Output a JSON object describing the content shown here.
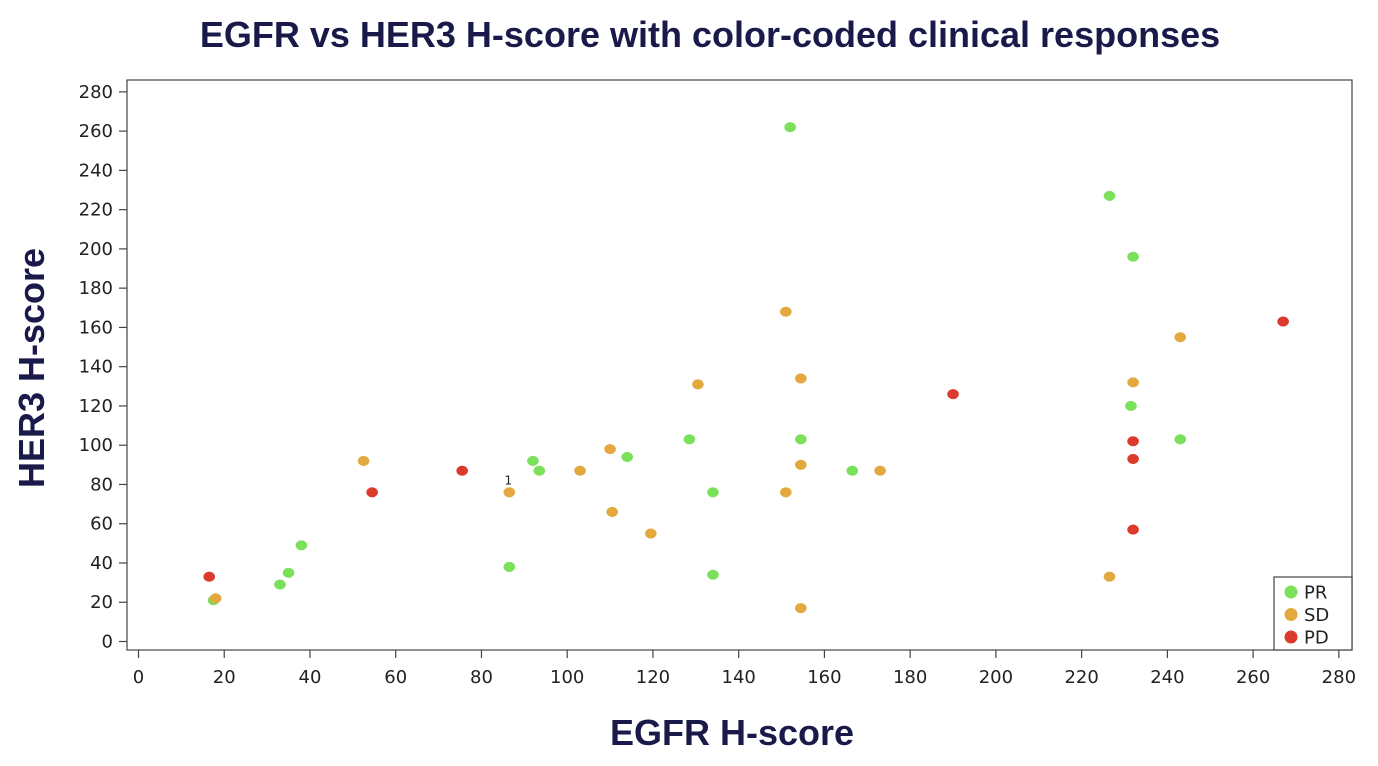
{
  "chart_data": {
    "type": "scatter",
    "title": "EGFR vs HER3 H-score with color-coded clinical responses",
    "xlabel": "EGFR H-score",
    "ylabel": "HER3 H-score",
    "xlim": [
      0,
      280
    ],
    "ylim": [
      0,
      280
    ],
    "xticks": [
      0,
      20,
      40,
      60,
      80,
      100,
      120,
      140,
      160,
      180,
      200,
      220,
      240,
      260,
      280
    ],
    "yticks": [
      0,
      20,
      40,
      60,
      80,
      100,
      120,
      140,
      160,
      180,
      200,
      220,
      240,
      260,
      280
    ],
    "grid": false,
    "legend_position": "bottom-right",
    "series": [
      {
        "name": "PR",
        "color": "#7be05a",
        "points": [
          {
            "x": 17.5,
            "y": 21
          },
          {
            "x": 33,
            "y": 29
          },
          {
            "x": 35,
            "y": 35
          },
          {
            "x": 38,
            "y": 49
          },
          {
            "x": 86.5,
            "y": 38
          },
          {
            "x": 92,
            "y": 92
          },
          {
            "x": 93.5,
            "y": 87
          },
          {
            "x": 114,
            "y": 94
          },
          {
            "x": 128.5,
            "y": 103
          },
          {
            "x": 134,
            "y": 76
          },
          {
            "x": 134,
            "y": 34
          },
          {
            "x": 152,
            "y": 262
          },
          {
            "x": 154.5,
            "y": 103
          },
          {
            "x": 166.5,
            "y": 87
          },
          {
            "x": 226.5,
            "y": 227
          },
          {
            "x": 232,
            "y": 196
          },
          {
            "x": 231.5,
            "y": 120
          },
          {
            "x": 243,
            "y": 103
          }
        ]
      },
      {
        "name": "SD",
        "color": "#e3a83e",
        "points": [
          {
            "x": 18,
            "y": 22
          },
          {
            "x": 52.5,
            "y": 92
          },
          {
            "x": 86.5,
            "y": 76
          },
          {
            "x": 103,
            "y": 87
          },
          {
            "x": 110,
            "y": 98
          },
          {
            "x": 110.5,
            "y": 66
          },
          {
            "x": 119.5,
            "y": 55
          },
          {
            "x": 130.5,
            "y": 131
          },
          {
            "x": 151,
            "y": 168
          },
          {
            "x": 151,
            "y": 76
          },
          {
            "x": 154.5,
            "y": 134
          },
          {
            "x": 154.5,
            "y": 90
          },
          {
            "x": 154.5,
            "y": 17
          },
          {
            "x": 173,
            "y": 87
          },
          {
            "x": 226.5,
            "y": 33
          },
          {
            "x": 232,
            "y": 132
          },
          {
            "x": 243,
            "y": 155
          }
        ]
      },
      {
        "name": "PD",
        "color": "#dc3a2c",
        "points": [
          {
            "x": 16.5,
            "y": 33
          },
          {
            "x": 54.5,
            "y": 76
          },
          {
            "x": 75.5,
            "y": 87
          },
          {
            "x": 190,
            "y": 126
          },
          {
            "x": 232,
            "y": 102
          },
          {
            "x": 232,
            "y": 93
          },
          {
            "x": 232,
            "y": 57
          },
          {
            "x": 267,
            "y": 163
          }
        ]
      }
    ],
    "annotations": [
      {
        "text": "1",
        "x": 86.5,
        "y": 76
      }
    ]
  }
}
